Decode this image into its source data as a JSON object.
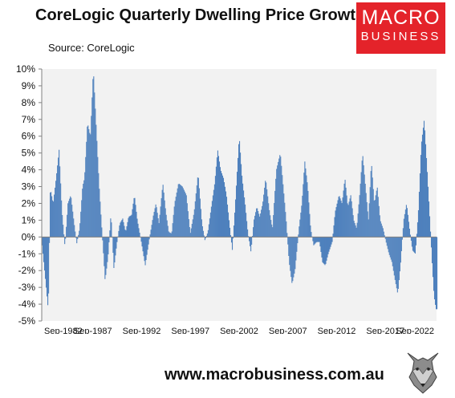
{
  "header": {
    "title": "CoreLogic Quarterly Dwelling Price Growth",
    "source": "Source: CoreLogic"
  },
  "logo": {
    "line1": "MACRO",
    "line2": "BUSINESS",
    "color": "#e4232a"
  },
  "footer": {
    "url": "www.macrobusiness.com.au"
  },
  "chart_data": {
    "type": "area",
    "title": "CoreLogic Quarterly Dwelling Price Growth",
    "xlabel": "",
    "ylabel": "",
    "ylim": [
      -5,
      10
    ],
    "y_ticks": [
      "10%",
      "9%",
      "8%",
      "7%",
      "6%",
      "5%",
      "4%",
      "3%",
      "2%",
      "1%",
      "0%",
      "-1%",
      "-2%",
      "-3%",
      "-4%",
      "-5%"
    ],
    "x_ticks": [
      "Sep-1982",
      "Sep-1987",
      "Sep-1992",
      "Sep-1997",
      "Sep-2002",
      "Sep-2007",
      "Sep-2012",
      "Sep-2017",
      "Sep-2022"
    ],
    "x_range": [
      1982.67,
      2023.0
    ],
    "grid": false,
    "series_color": "#4f81bd",
    "plot_background": "#f2f2f2",
    "series": [
      {
        "x": [
          1982.67,
          1983.0,
          1983.3,
          1983.5,
          1983.8,
          1984.1,
          1984.4,
          1984.7,
          1985.0,
          1985.3,
          1985.6,
          1985.9,
          1986.2,
          1986.5,
          1986.8,
          1987.0,
          1987.3,
          1987.6,
          1987.9,
          1988.2,
          1988.5,
          1988.8,
          1989.1,
          1989.4,
          1989.7,
          1990.0,
          1990.3,
          1990.6,
          1990.9,
          1991.2,
          1991.5,
          1991.8,
          1992.1,
          1992.4,
          1992.8,
          1993.2,
          1993.6,
          1994.0,
          1994.3,
          1994.6,
          1995.0,
          1995.3,
          1995.6,
          1995.9,
          1996.2,
          1996.6,
          1997.0,
          1997.4,
          1997.8,
          1998.2,
          1998.6,
          1999.0,
          1999.3,
          1999.6,
          2000.0,
          2000.3,
          2000.6,
          2000.9,
          2001.2,
          2001.5,
          2001.8,
          2002.1,
          2002.4,
          2002.8,
          2003.1,
          2003.4,
          2003.7,
          2004.0,
          2004.3,
          2004.6,
          2004.9,
          2005.2,
          2005.5,
          2005.9,
          2006.2,
          2006.6,
          2007.0,
          2007.3,
          2007.6,
          2007.9,
          2008.2,
          2008.5,
          2008.9,
          2009.2,
          2009.5,
          2009.8,
          2010.1,
          2010.4,
          2010.7,
          2011.0,
          2011.3,
          2011.6,
          2011.9,
          2012.3,
          2012.6,
          2013.0,
          2013.3,
          2013.6,
          2013.9,
          2014.2,
          2014.5,
          2014.8,
          2015.1,
          2015.4,
          2015.7,
          2016.0,
          2016.3,
          2016.6,
          2016.9,
          2017.2,
          2017.5,
          2017.8,
          2018.1,
          2018.4,
          2018.7,
          2019.0,
          2019.3,
          2019.6,
          2019.9,
          2020.2,
          2020.5,
          2020.8,
          2021.1,
          2021.4,
          2021.7,
          2022.0,
          2022.3,
          2022.5,
          2022.7,
          2022.9
        ],
        "values": [
          -0.5,
          -2.5,
          -4.4,
          2.9,
          2.0,
          3.5,
          5.2,
          1.5,
          -0.6,
          2.0,
          2.5,
          1.0,
          -0.4,
          0.5,
          3.0,
          3.5,
          6.8,
          6.0,
          10.0,
          6.5,
          3.0,
          0.2,
          -2.6,
          -1.2,
          1.4,
          -1.9,
          -0.4,
          0.8,
          1.1,
          0.3,
          1.2,
          1.3,
          2.5,
          1.0,
          -0.3,
          -1.7,
          -0.2,
          1.2,
          2.0,
          0.8,
          3.2,
          1.5,
          0.3,
          0.2,
          2.0,
          3.2,
          3.0,
          2.5,
          0.2,
          1.5,
          3.8,
          0.8,
          -0.2,
          0.3,
          2.0,
          3.2,
          5.2,
          4.0,
          3.5,
          2.5,
          0.8,
          -0.8,
          2.0,
          6.0,
          3.5,
          2.0,
          0.2,
          -0.9,
          1.0,
          1.8,
          1.2,
          2.0,
          3.5,
          1.5,
          0.5,
          4.0,
          5.0,
          3.0,
          1.0,
          -1.5,
          -2.8,
          -2.0,
          0.5,
          2.0,
          4.5,
          3.0,
          0.5,
          -0.5,
          -0.3,
          -0.3,
          -1.5,
          -1.7,
          -1.0,
          -0.3,
          1.5,
          2.5,
          2.0,
          3.5,
          1.8,
          2.5,
          1.0,
          0.5,
          2.5,
          5.0,
          3.0,
          1.0,
          4.5,
          2.0,
          3.0,
          1.0,
          0.5,
          -0.3,
          -1.0,
          -1.5,
          -2.5,
          -3.4,
          -1.5,
          1.0,
          2.0,
          0.5,
          -0.8,
          -1.0,
          1.5,
          5.5,
          7.0,
          4.0,
          0.8,
          -1.5,
          -3.5,
          -4.3
        ]
      }
    ]
  }
}
